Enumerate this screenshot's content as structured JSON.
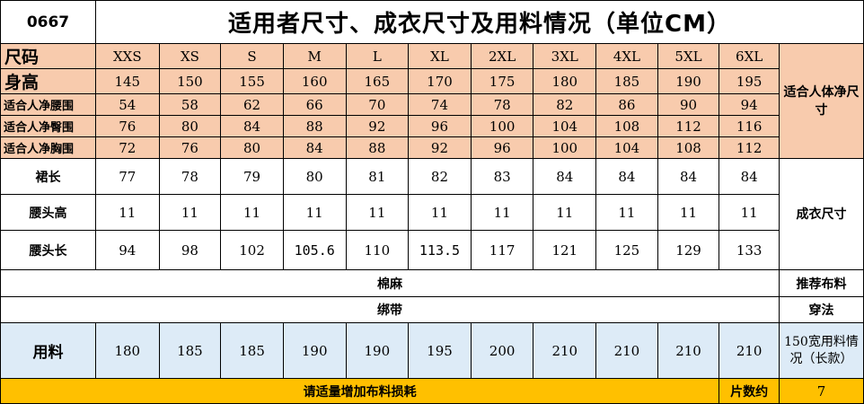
{
  "code": "0667",
  "title": "适用者尺寸、成衣尺寸及用料情况（单位CM）",
  "header": {
    "label": "尺码",
    "sizes": [
      "XXS",
      "XS",
      "S",
      "M",
      "L",
      "XL",
      "2XL",
      "3XL",
      "4XL",
      "5XL",
      "6XL"
    ]
  },
  "body_rows": [
    {
      "label": "身高",
      "values": [
        "145",
        "150",
        "155",
        "160",
        "165",
        "170",
        "175",
        "180",
        "185",
        "190",
        "195"
      ]
    },
    {
      "label": "适合人净腰围",
      "values": [
        "54",
        "58",
        "62",
        "66",
        "70",
        "74",
        "78",
        "82",
        "86",
        "90",
        "94"
      ]
    },
    {
      "label": "适合人净臀围",
      "values": [
        "76",
        "80",
        "84",
        "88",
        "92",
        "96",
        "100",
        "104",
        "108",
        "112",
        "116"
      ]
    },
    {
      "label": "适合人净胸围",
      "values": [
        "72",
        "76",
        "80",
        "84",
        "88",
        "92",
        "96",
        "100",
        "104",
        "108",
        "112"
      ]
    }
  ],
  "body_group_label": "适合人体净尺寸",
  "garment_rows": [
    {
      "label": "裙长",
      "values": [
        "77",
        "78",
        "79",
        "80",
        "81",
        "82",
        "83",
        "84",
        "84",
        "84",
        "84"
      ]
    },
    {
      "label": "腰头高",
      "values": [
        "11",
        "11",
        "11",
        "11",
        "11",
        "11",
        "11",
        "11",
        "11",
        "11",
        "11"
      ]
    },
    {
      "label": "腰头长",
      "values": [
        "94",
        "98",
        "102",
        "105.6",
        "110",
        "113.5",
        "117",
        "121",
        "125",
        "129",
        "133"
      ]
    }
  ],
  "garment_group_label": "成衣尺寸",
  "fabric": {
    "value": "棉麻",
    "label": "推荐布料"
  },
  "wearing": {
    "value": "绑带",
    "label": "穿法"
  },
  "usage": {
    "label": "用料",
    "values": [
      "180",
      "185",
      "185",
      "190",
      "190",
      "195",
      "200",
      "210",
      "210",
      "210",
      "210"
    ],
    "right_label": "150宽用料情况（长款）"
  },
  "footer": {
    "note": "请适量增加布料损耗",
    "pieces_label": "片数约",
    "pieces_value": "7"
  },
  "colors": {
    "header_fill": "#f8cbad",
    "usage_fill": "#ddebf7",
    "footer_fill": "#ffc000",
    "code_text": "#e0141e"
  }
}
